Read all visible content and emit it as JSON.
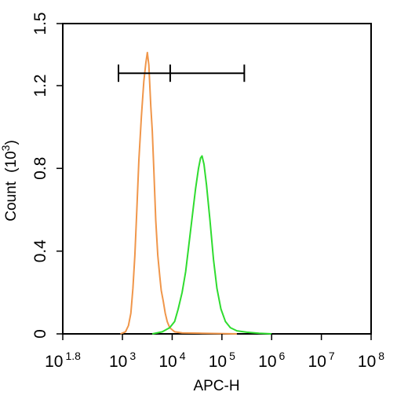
{
  "chart_data": {
    "type": "line",
    "subtype": "flow-cytometry-histogram",
    "title": "",
    "xlabel": "APC-H",
    "ylabel": "Count",
    "ylabel_unit_base": "10",
    "ylabel_unit_exp": "3",
    "x_scale": "log",
    "xlim": [
      1.8,
      8
    ],
    "ylim": [
      0,
      1.5
    ],
    "x_ticks": [
      {
        "base": "10",
        "exp": "1.8",
        "value": 1.8
      },
      {
        "base": "10",
        "exp": "3",
        "value": 3
      },
      {
        "base": "10",
        "exp": "4",
        "value": 4
      },
      {
        "base": "10",
        "exp": "5",
        "value": 5
      },
      {
        "base": "10",
        "exp": "6",
        "value": 6
      },
      {
        "base": "10",
        "exp": "7",
        "value": 7
      },
      {
        "base": "10",
        "exp": "8",
        "value": 8
      }
    ],
    "y_ticks": [
      {
        "label": "0",
        "value": 0
      },
      {
        "label": "0.4",
        "value": 0.4
      },
      {
        "label": "0.8",
        "value": 0.8
      },
      {
        "label": "1.2",
        "value": 1.2
      },
      {
        "label": "1.5",
        "value": 1.5
      }
    ],
    "grid": false,
    "legend": "none",
    "gate": {
      "y": 1.26,
      "points_log10": [
        2.92,
        3.96,
        5.45
      ]
    },
    "series": [
      {
        "color": "#f0964a",
        "points": [
          [
            2.96,
            0.0
          ],
          [
            3.06,
            0.01
          ],
          [
            3.12,
            0.04
          ],
          [
            3.17,
            0.1
          ],
          [
            3.21,
            0.22
          ],
          [
            3.25,
            0.38
          ],
          [
            3.29,
            0.6
          ],
          [
            3.33,
            0.84
          ],
          [
            3.38,
            1.05
          ],
          [
            3.43,
            1.22
          ],
          [
            3.47,
            1.31
          ],
          [
            3.5,
            1.36
          ],
          [
            3.53,
            1.3
          ],
          [
            3.57,
            1.1
          ],
          [
            3.6,
            0.98
          ],
          [
            3.63,
            0.8
          ],
          [
            3.67,
            0.55
          ],
          [
            3.71,
            0.38
          ],
          [
            3.75,
            0.28
          ],
          [
            3.78,
            0.21
          ],
          [
            3.82,
            0.16
          ],
          [
            3.86,
            0.1
          ],
          [
            3.9,
            0.06
          ],
          [
            3.95,
            0.03
          ],
          [
            4.05,
            0.01
          ],
          [
            4.2,
            0.005
          ],
          [
            4.6,
            0.003
          ],
          [
            5.3,
            0.0
          ]
        ]
      },
      {
        "color": "#2fdc2f",
        "points": [
          [
            3.6,
            0.0
          ],
          [
            3.8,
            0.01
          ],
          [
            3.95,
            0.03
          ],
          [
            4.05,
            0.06
          ],
          [
            4.12,
            0.12
          ],
          [
            4.2,
            0.2
          ],
          [
            4.27,
            0.3
          ],
          [
            4.33,
            0.42
          ],
          [
            4.4,
            0.56
          ],
          [
            4.47,
            0.7
          ],
          [
            4.53,
            0.8
          ],
          [
            4.57,
            0.85
          ],
          [
            4.6,
            0.86
          ],
          [
            4.64,
            0.82
          ],
          [
            4.69,
            0.72
          ],
          [
            4.76,
            0.55
          ],
          [
            4.83,
            0.36
          ],
          [
            4.9,
            0.22
          ],
          [
            4.98,
            0.12
          ],
          [
            5.07,
            0.06
          ],
          [
            5.17,
            0.03
          ],
          [
            5.3,
            0.015
          ],
          [
            5.5,
            0.008
          ],
          [
            5.75,
            0.003
          ],
          [
            6.0,
            0.0
          ]
        ]
      }
    ]
  }
}
